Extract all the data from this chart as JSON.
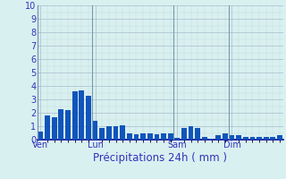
{
  "xlabel": "Précipitations 24h ( mm )",
  "background_color": "#d8f0f0",
  "bar_color": "#1155bb",
  "grid_major_color": "#aabbcc",
  "grid_minor_color": "#c8d8d8",
  "axis_color": "#000099",
  "tick_label_color": "#3333bb",
  "ylim": [
    0,
    10
  ],
  "yticks": [
    0,
    1,
    2,
    3,
    4,
    5,
    6,
    7,
    8,
    9,
    10
  ],
  "values": [
    0.6,
    1.8,
    1.7,
    2.3,
    2.2,
    3.6,
    3.7,
    3.3,
    1.4,
    0.9,
    1.0,
    1.0,
    1.1,
    0.5,
    0.4,
    0.45,
    0.45,
    0.4,
    0.45,
    0.45,
    0.15,
    0.9,
    1.0,
    0.9,
    0.2,
    0.1,
    0.35,
    0.45,
    0.35,
    0.35,
    0.2,
    0.2,
    0.2,
    0.2,
    0.2,
    0.35
  ],
  "day_labels": [
    "Ven",
    "Lun",
    "Sam",
    "Dim"
  ],
  "day_positions": [
    0,
    8,
    20,
    28
  ],
  "sep_line_color": "#7799aa",
  "xlabel_fontsize": 8.5,
  "tick_fontsize": 7
}
